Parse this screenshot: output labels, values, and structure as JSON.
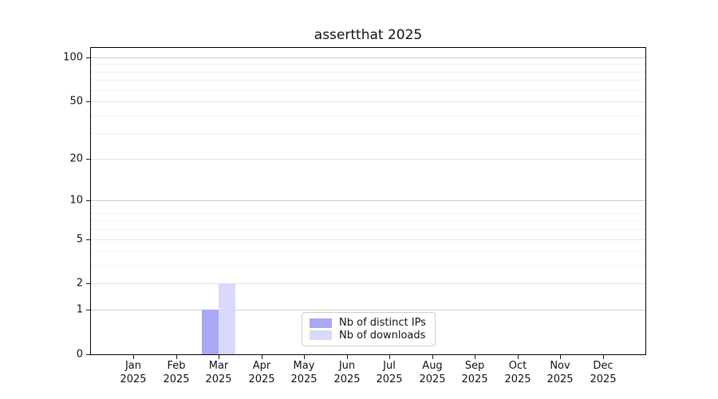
{
  "chart_data": {
    "type": "bar",
    "title": "assertthat 2025",
    "x_months": [
      "Jan",
      "Feb",
      "Mar",
      "Apr",
      "May",
      "Jun",
      "Jul",
      "Aug",
      "Sep",
      "Oct",
      "Nov",
      "Dec"
    ],
    "x_year": "2025",
    "series": [
      {
        "name": "Nb of distinct IPs",
        "color": "#a8a8f5",
        "values": [
          0,
          0,
          1,
          0,
          0,
          0,
          0,
          0,
          0,
          0,
          0,
          0
        ]
      },
      {
        "name": "Nb of downloads",
        "color": "#d9daf9",
        "values": [
          0,
          0,
          2,
          0,
          0,
          0,
          0,
          0,
          0,
          0,
          0,
          0
        ]
      }
    ],
    "yscale": "log1p",
    "ylim": [
      0,
      116
    ],
    "yticks": [
      0,
      1,
      2,
      5,
      10,
      20,
      50,
      100
    ],
    "yticks_minor": [
      3,
      4,
      6,
      7,
      8,
      9,
      30,
      40,
      60,
      70,
      80,
      90
    ],
    "grid": "horizontal",
    "legend_position": "lower-center",
    "colors": {
      "grid_decade": "#c9c9c9",
      "grid_labeled": "#e3e3e3",
      "grid_minor": "#f2f2f2",
      "axis": "#000000",
      "text": "#111111"
    }
  }
}
